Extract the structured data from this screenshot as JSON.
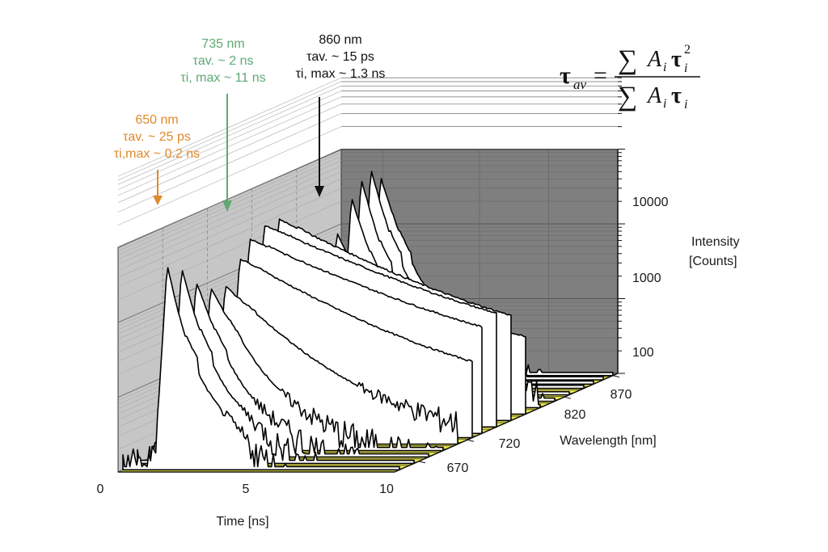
{
  "chart_data": {
    "type": "area",
    "title": "",
    "xlabel": "Time [ns]",
    "ylabel": "Wavelength [nm]",
    "zlabel_line1": "Intensity",
    "zlabel_line2": "[Counts]",
    "xlim": [
      0,
      10
    ],
    "x_ticks": [
      "0",
      "5",
      "10"
    ],
    "y_ticks": [
      "670",
      "720",
      "820",
      "870"
    ],
    "z_scale": "log",
    "zlim": [
      10,
      100000
    ],
    "z_ticks": [
      "100",
      "1000",
      "10000"
    ],
    "grid": true,
    "series": [
      {
        "wavelength": 650,
        "peak_time": 1.6,
        "peak_counts": 5500,
        "decay_ns": 0.25
      },
      {
        "wavelength": 665,
        "peak_time": 1.6,
        "peak_counts": 4000,
        "decay_ns": 0.3
      },
      {
        "wavelength": 680,
        "peak_time": 1.6,
        "peak_counts": 2200,
        "decay_ns": 0.4
      },
      {
        "wavelength": 695,
        "peak_time": 1.6,
        "peak_counts": 1500,
        "decay_ns": 0.6
      },
      {
        "wavelength": 710,
        "peak_time": 1.6,
        "peak_counts": 1300,
        "decay_ns": 1.2
      },
      {
        "wavelength": 725,
        "peak_time": 1.6,
        "peak_counts": 2500,
        "decay_ns": 2.0
      },
      {
        "wavelength": 735,
        "peak_time": 1.6,
        "peak_counts": 4000,
        "decay_ns": 2.5
      },
      {
        "wavelength": 750,
        "peak_time": 1.6,
        "peak_counts": 5000,
        "decay_ns": 2.5
      },
      {
        "wavelength": 765,
        "peak_time": 1.6,
        "peak_counts": 5000,
        "decay_ns": 2.2
      },
      {
        "wavelength": 780,
        "peak_time": 1.6,
        "peak_counts": 3200,
        "decay_ns": 1.8
      },
      {
        "wavelength": 795,
        "peak_time": 1.6,
        "peak_counts": 1800,
        "decay_ns": 1.0
      },
      {
        "wavelength": 810,
        "peak_time": 1.6,
        "peak_counts": 1200,
        "decay_ns": 0.7
      },
      {
        "wavelength": 825,
        "peak_time": 1.6,
        "peak_counts": 1500,
        "decay_ns": 0.5
      },
      {
        "wavelength": 840,
        "peak_time": 1.6,
        "peak_counts": 3500,
        "decay_ns": 0.35
      },
      {
        "wavelength": 850,
        "peak_time": 1.6,
        "peak_counts": 5500,
        "decay_ns": 0.3
      },
      {
        "wavelength": 860,
        "peak_time": 1.6,
        "peak_counts": 6500,
        "decay_ns": 0.3
      },
      {
        "wavelength": 870,
        "peak_time": 1.6,
        "peak_counts": 4500,
        "decay_ns": 0.35
      }
    ],
    "annotations": [
      {
        "color": "#e08a2c",
        "lines": [
          "650 nm",
          "τav. ~ 25 ps",
          "τi,max ~ 0.2 ns"
        ],
        "wavelength": 650
      },
      {
        "color": "#5fa873",
        "lines": [
          "735 nm",
          "τav. ~ 2 ns",
          "τi, max ~ 11 ns"
        ],
        "wavelength": 735
      },
      {
        "color": "#111111",
        "lines": [
          "860 nm",
          "τav. ~ 15 ps",
          "τi, max ~ 1.3 ns"
        ],
        "wavelength": 860
      }
    ]
  },
  "equation": {
    "lhs": "τ",
    "lhs_sub": "av",
    "eq": "=",
    "sum": "∑",
    "num_a": "A",
    "num_a_sub": "i",
    "num_tau": "τ",
    "num_tau_sub": "i",
    "num_tau_sup": "2",
    "den_a": "A",
    "den_a_sub": "i",
    "den_tau": "τ",
    "den_tau_sub": "i"
  },
  "colors": {
    "panel_back": "#7f7f7f",
    "panel_side": "#c6c6c6",
    "floor": "#e8e64a",
    "curve_fill": "#ffffff",
    "curve_stroke": "#000000"
  }
}
